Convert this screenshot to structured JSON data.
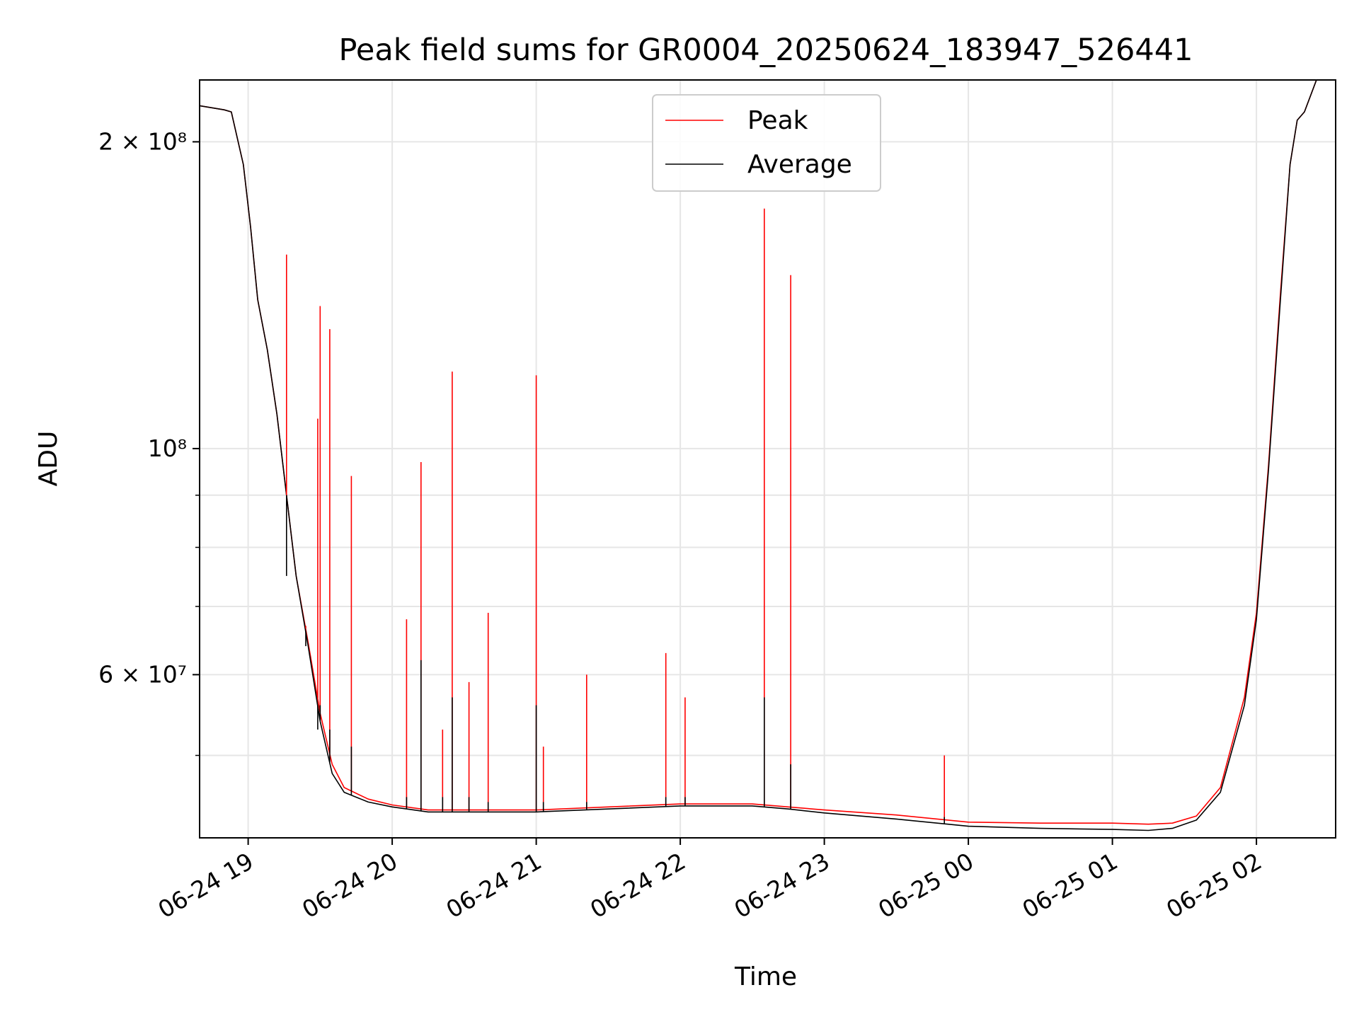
{
  "chart_data": {
    "type": "line",
    "title": "Peak field sums for GR0004_20250624_183947_526441",
    "xlabel": "Time",
    "ylabel": "ADU",
    "yscale": "log",
    "ylim": [
      41500000,
      230000000
    ],
    "xlim": [
      "2025-06-24 18:39:47",
      "2025-06-25 02:33:00"
    ],
    "grid": true,
    "legend_position": "upper-center",
    "colors": {
      "Peak": "#ff0000",
      "Average": "#000000"
    },
    "x_ticks": [
      {
        "t": "2025-06-24 19:00",
        "label": "06-24 19"
      },
      {
        "t": "2025-06-24 20:00",
        "label": "06-24 20"
      },
      {
        "t": "2025-06-24 21:00",
        "label": "06-24 21"
      },
      {
        "t": "2025-06-24 22:00",
        "label": "06-24 22"
      },
      {
        "t": "2025-06-24 23:00",
        "label": "06-24 23"
      },
      {
        "t": "2025-06-25 00:00",
        "label": "06-25 00"
      },
      {
        "t": "2025-06-25 01:00",
        "label": "06-25 01"
      },
      {
        "t": "2025-06-25 02:00",
        "label": "06-25 02"
      }
    ],
    "y_major_ticks": [
      {
        "value": 200000000,
        "label": "2 × 10⁸"
      },
      {
        "value": 100000000,
        "label": "10⁸"
      },
      {
        "value": 60000000,
        "label": "6 × 10⁷"
      }
    ],
    "y_minor_ticks": [
      50000000,
      70000000,
      80000000,
      90000000
    ],
    "series": [
      {
        "name": "Average",
        "x": [
          "2025-06-24 18:39:47",
          "2025-06-24 18:50",
          "2025-06-24 18:53",
          "2025-06-24 18:58",
          "2025-06-24 19:01",
          "2025-06-24 19:04",
          "2025-06-24 19:08",
          "2025-06-24 19:12",
          "2025-06-24 19:16",
          "2025-06-24 19:20",
          "2025-06-24 19:25",
          "2025-06-24 19:30",
          "2025-06-24 19:35",
          "2025-06-24 19:40",
          "2025-06-24 19:50",
          "2025-06-24 20:00",
          "2025-06-24 20:15",
          "2025-06-24 20:30",
          "2025-06-24 20:45",
          "2025-06-24 21:00",
          "2025-06-24 21:30",
          "2025-06-24 22:00",
          "2025-06-24 22:30",
          "2025-06-24 22:45",
          "2025-06-24 23:00",
          "2025-06-24 23:30",
          "2025-06-25 00:00",
          "2025-06-25 00:30",
          "2025-06-25 01:00",
          "2025-06-25 01:15",
          "2025-06-25 01:25",
          "2025-06-25 01:35",
          "2025-06-25 01:45",
          "2025-06-25 01:55",
          "2025-06-25 02:00",
          "2025-06-25 02:05",
          "2025-06-25 02:10",
          "2025-06-25 02:14",
          "2025-06-25 02:17",
          "2025-06-25 02:20",
          "2025-06-25 02:25"
        ],
        "values": [
          217000000,
          215000000,
          214000000,
          190000000,
          165000000,
          140000000,
          125000000,
          108000000,
          90000000,
          75000000,
          64000000,
          54000000,
          48000000,
          46000000,
          45000000,
          44500000,
          44000000,
          44000000,
          44000000,
          44000000,
          44300000,
          44600000,
          44600000,
          44300000,
          43900000,
          43300000,
          42600000,
          42400000,
          42300000,
          42200000,
          42400000,
          43200000,
          46000000,
          56000000,
          68000000,
          95000000,
          140000000,
          190000000,
          210000000,
          214000000,
          230000000
        ]
      },
      {
        "name": "Peak",
        "x": [
          "2025-06-24 18:39:47",
          "2025-06-24 18:50",
          "2025-06-24 18:53",
          "2025-06-24 18:58",
          "2025-06-24 19:01",
          "2025-06-24 19:04",
          "2025-06-24 19:08",
          "2025-06-24 19:12",
          "2025-06-24 19:16",
          "2025-06-24 19:20",
          "2025-06-24 19:25",
          "2025-06-24 19:30",
          "2025-06-24 19:35",
          "2025-06-24 19:40",
          "2025-06-24 19:50",
          "2025-06-24 20:00",
          "2025-06-24 20:15",
          "2025-06-24 20:30",
          "2025-06-24 20:45",
          "2025-06-24 21:00",
          "2025-06-24 21:30",
          "2025-06-24 22:00",
          "2025-06-24 22:30",
          "2025-06-24 22:45",
          "2025-06-24 23:00",
          "2025-06-24 23:30",
          "2025-06-25 00:00",
          "2025-06-25 00:30",
          "2025-06-25 01:00",
          "2025-06-25 01:15",
          "2025-06-25 01:25",
          "2025-06-25 01:35",
          "2025-06-25 01:45",
          "2025-06-25 01:55",
          "2025-06-25 02:00",
          "2025-06-25 02:05",
          "2025-06-25 02:10",
          "2025-06-25 02:14",
          "2025-06-25 02:17",
          "2025-06-25 02:20",
          "2025-06-25 02:25"
        ],
        "values": [
          217000000,
          215000000,
          214000000,
          190000000,
          165000000,
          140000000,
          125000000,
          108000000,
          90000000,
          75000000,
          64500000,
          55000000,
          49000000,
          46500000,
          45300000,
          44700000,
          44200000,
          44200000,
          44200000,
          44200000,
          44500000,
          44800000,
          44800000,
          44500000,
          44200000,
          43700000,
          43000000,
          42900000,
          42900000,
          42800000,
          42900000,
          43600000,
          46500000,
          57000000,
          69000000,
          96000000,
          142000000,
          190000000,
          210000000,
          214000000,
          230000000
        ]
      }
    ],
    "spikes": [
      {
        "t": "2025-06-24 19:16",
        "peak": 155000000,
        "average": 75000000
      },
      {
        "t": "2025-06-24 19:24",
        "peak": 67000000,
        "average": 64000000
      },
      {
        "t": "2025-06-24 19:29",
        "peak": 107000000,
        "average": 53000000
      },
      {
        "t": "2025-06-24 19:30",
        "peak": 138000000,
        "average": 56000000
      },
      {
        "t": "2025-06-24 19:34",
        "peak": 131000000,
        "average": 53000000
      },
      {
        "t": "2025-06-24 19:43",
        "peak": 94000000,
        "average": 51000000
      },
      {
        "t": "2025-06-24 20:06",
        "peak": 68000000,
        "average": 45500000
      },
      {
        "t": "2025-06-24 20:12",
        "peak": 97000000,
        "average": 62000000
      },
      {
        "t": "2025-06-24 20:21",
        "peak": 53000000,
        "average": 45500000
      },
      {
        "t": "2025-06-24 20:25",
        "peak": 119000000,
        "average": 57000000
      },
      {
        "t": "2025-06-24 20:32",
        "peak": 59000000,
        "average": 45500000
      },
      {
        "t": "2025-06-24 20:40",
        "peak": 69000000,
        "average": 45000000
      },
      {
        "t": "2025-06-24 21:00",
        "peak": 118000000,
        "average": 56000000
      },
      {
        "t": "2025-06-24 21:03",
        "peak": 51000000,
        "average": 45000000
      },
      {
        "t": "2025-06-24 21:21",
        "peak": 60000000,
        "average": 45000000
      },
      {
        "t": "2025-06-24 21:54",
        "peak": 63000000,
        "average": 45500000
      },
      {
        "t": "2025-06-24 22:02",
        "peak": 57000000,
        "average": 45500000
      },
      {
        "t": "2025-06-24 22:35",
        "peak": 172000000,
        "average": 57000000
      },
      {
        "t": "2025-06-24 22:46",
        "peak": 148000000,
        "average": 49000000
      },
      {
        "t": "2025-06-24 23:50",
        "peak": 50000000,
        "average": 43500000
      }
    ]
  }
}
